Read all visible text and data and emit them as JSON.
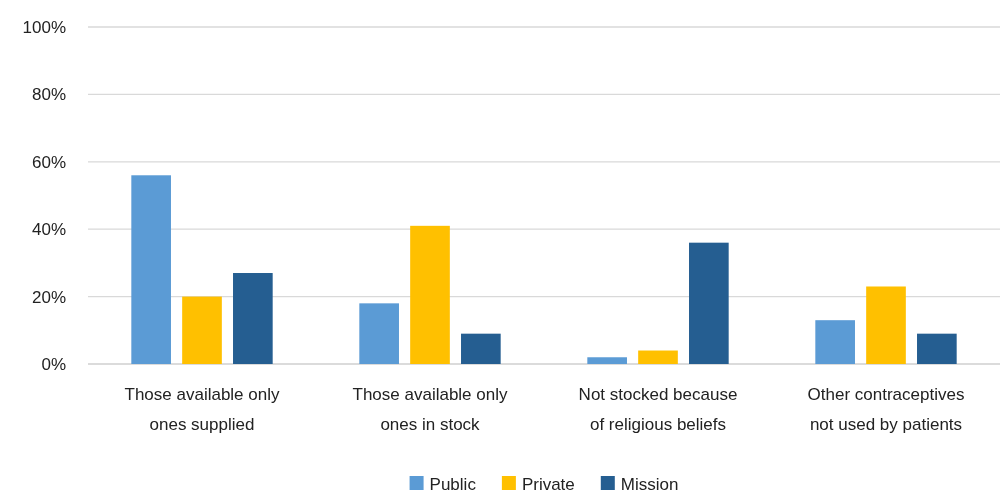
{
  "chart_data": {
    "type": "bar",
    "categories": [
      "Those available only ones supplied",
      "Those available only ones in stock",
      "Not stocked because of religious beliefs",
      "Other contraceptives not used by patients"
    ],
    "series": [
      {
        "name": "Public",
        "color": "#5b9bd5",
        "values": [
          56,
          18,
          2,
          13
        ]
      },
      {
        "name": "Private",
        "color": "#ffc000",
        "values": [
          20,
          41,
          4,
          23
        ]
      },
      {
        "name": "Mission",
        "color": "#255e91",
        "values": [
          27,
          9,
          36,
          9
        ]
      }
    ],
    "ylim": [
      0,
      100
    ],
    "yticks": [
      {
        "value": 0,
        "label": "0%"
      },
      {
        "value": 20,
        "label": "20%"
      },
      {
        "value": 40,
        "label": "40%"
      },
      {
        "value": 60,
        "label": "60%"
      },
      {
        "value": 80,
        "label": "80%"
      },
      {
        "value": 100,
        "label": "100%"
      }
    ],
    "grid": "y",
    "legend": "bottom"
  }
}
